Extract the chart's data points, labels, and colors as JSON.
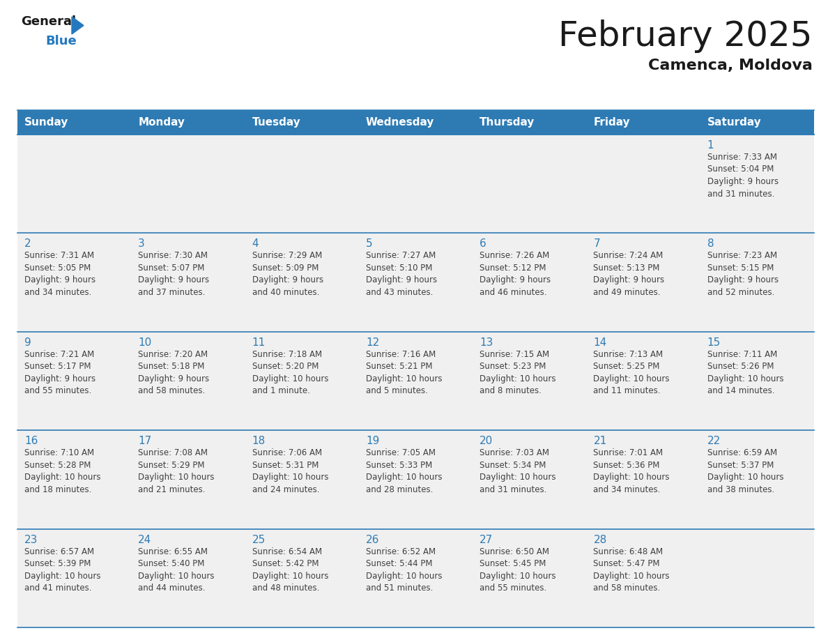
{
  "title": "February 2025",
  "subtitle": "Camenca, Moldova",
  "days_of_week": [
    "Sunday",
    "Monday",
    "Tuesday",
    "Wednesday",
    "Thursday",
    "Friday",
    "Saturday"
  ],
  "header_bg": "#2E7BB4",
  "header_text": "#FFFFFF",
  "cell_bg": "#F0F0F0",
  "cell_bg_white": "#FFFFFF",
  "day_number_color": "#2E7BB4",
  "info_text_color": "#404040",
  "border_color": "#2E7BB4",
  "weeks": [
    [
      {
        "day": null,
        "info": ""
      },
      {
        "day": null,
        "info": ""
      },
      {
        "day": null,
        "info": ""
      },
      {
        "day": null,
        "info": ""
      },
      {
        "day": null,
        "info": ""
      },
      {
        "day": null,
        "info": ""
      },
      {
        "day": 1,
        "info": "Sunrise: 7:33 AM\nSunset: 5:04 PM\nDaylight: 9 hours\nand 31 minutes."
      }
    ],
    [
      {
        "day": 2,
        "info": "Sunrise: 7:31 AM\nSunset: 5:05 PM\nDaylight: 9 hours\nand 34 minutes."
      },
      {
        "day": 3,
        "info": "Sunrise: 7:30 AM\nSunset: 5:07 PM\nDaylight: 9 hours\nand 37 minutes."
      },
      {
        "day": 4,
        "info": "Sunrise: 7:29 AM\nSunset: 5:09 PM\nDaylight: 9 hours\nand 40 minutes."
      },
      {
        "day": 5,
        "info": "Sunrise: 7:27 AM\nSunset: 5:10 PM\nDaylight: 9 hours\nand 43 minutes."
      },
      {
        "day": 6,
        "info": "Sunrise: 7:26 AM\nSunset: 5:12 PM\nDaylight: 9 hours\nand 46 minutes."
      },
      {
        "day": 7,
        "info": "Sunrise: 7:24 AM\nSunset: 5:13 PM\nDaylight: 9 hours\nand 49 minutes."
      },
      {
        "day": 8,
        "info": "Sunrise: 7:23 AM\nSunset: 5:15 PM\nDaylight: 9 hours\nand 52 minutes."
      }
    ],
    [
      {
        "day": 9,
        "info": "Sunrise: 7:21 AM\nSunset: 5:17 PM\nDaylight: 9 hours\nand 55 minutes."
      },
      {
        "day": 10,
        "info": "Sunrise: 7:20 AM\nSunset: 5:18 PM\nDaylight: 9 hours\nand 58 minutes."
      },
      {
        "day": 11,
        "info": "Sunrise: 7:18 AM\nSunset: 5:20 PM\nDaylight: 10 hours\nand 1 minute."
      },
      {
        "day": 12,
        "info": "Sunrise: 7:16 AM\nSunset: 5:21 PM\nDaylight: 10 hours\nand 5 minutes."
      },
      {
        "day": 13,
        "info": "Sunrise: 7:15 AM\nSunset: 5:23 PM\nDaylight: 10 hours\nand 8 minutes."
      },
      {
        "day": 14,
        "info": "Sunrise: 7:13 AM\nSunset: 5:25 PM\nDaylight: 10 hours\nand 11 minutes."
      },
      {
        "day": 15,
        "info": "Sunrise: 7:11 AM\nSunset: 5:26 PM\nDaylight: 10 hours\nand 14 minutes."
      }
    ],
    [
      {
        "day": 16,
        "info": "Sunrise: 7:10 AM\nSunset: 5:28 PM\nDaylight: 10 hours\nand 18 minutes."
      },
      {
        "day": 17,
        "info": "Sunrise: 7:08 AM\nSunset: 5:29 PM\nDaylight: 10 hours\nand 21 minutes."
      },
      {
        "day": 18,
        "info": "Sunrise: 7:06 AM\nSunset: 5:31 PM\nDaylight: 10 hours\nand 24 minutes."
      },
      {
        "day": 19,
        "info": "Sunrise: 7:05 AM\nSunset: 5:33 PM\nDaylight: 10 hours\nand 28 minutes."
      },
      {
        "day": 20,
        "info": "Sunrise: 7:03 AM\nSunset: 5:34 PM\nDaylight: 10 hours\nand 31 minutes."
      },
      {
        "day": 21,
        "info": "Sunrise: 7:01 AM\nSunset: 5:36 PM\nDaylight: 10 hours\nand 34 minutes."
      },
      {
        "day": 22,
        "info": "Sunrise: 6:59 AM\nSunset: 5:37 PM\nDaylight: 10 hours\nand 38 minutes."
      }
    ],
    [
      {
        "day": 23,
        "info": "Sunrise: 6:57 AM\nSunset: 5:39 PM\nDaylight: 10 hours\nand 41 minutes."
      },
      {
        "day": 24,
        "info": "Sunrise: 6:55 AM\nSunset: 5:40 PM\nDaylight: 10 hours\nand 44 minutes."
      },
      {
        "day": 25,
        "info": "Sunrise: 6:54 AM\nSunset: 5:42 PM\nDaylight: 10 hours\nand 48 minutes."
      },
      {
        "day": 26,
        "info": "Sunrise: 6:52 AM\nSunset: 5:44 PM\nDaylight: 10 hours\nand 51 minutes."
      },
      {
        "day": 27,
        "info": "Sunrise: 6:50 AM\nSunset: 5:45 PM\nDaylight: 10 hours\nand 55 minutes."
      },
      {
        "day": 28,
        "info": "Sunrise: 6:48 AM\nSunset: 5:47 PM\nDaylight: 10 hours\nand 58 minutes."
      },
      {
        "day": null,
        "info": ""
      }
    ]
  ],
  "logo_general_color": "#1A1A1A",
  "logo_blue_color": "#2479BE",
  "logo_triangle_color": "#2479BE",
  "title_fontsize": 36,
  "subtitle_fontsize": 16,
  "header_fontsize": 11,
  "day_num_fontsize": 11,
  "info_fontsize": 8.5
}
